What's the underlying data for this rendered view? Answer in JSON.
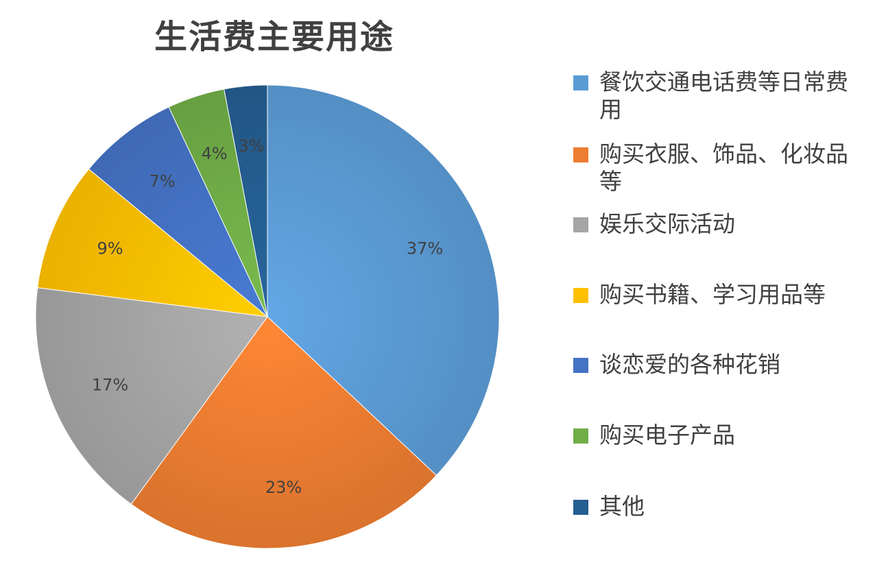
{
  "chart_data": {
    "type": "pie",
    "title": "生活费主要用途",
    "legend_position": "right",
    "slices": [
      {
        "label": "餐饮交通电话费等日常费用",
        "value": 37,
        "display": "37%",
        "color": "#5b9bd5"
      },
      {
        "label": "购买衣服、饰品、化妆品等",
        "value": 23,
        "display": "23%",
        "color": "#ed7d31"
      },
      {
        "label": "娱乐交际活动",
        "value": 17,
        "display": "17%",
        "color": "#a5a5a5"
      },
      {
        "label": "购买书籍、学习用品等",
        "value": 9,
        "display": "9%",
        "color": "#ffc000"
      },
      {
        "label": "谈恋爱的各种花销",
        "value": 7,
        "display": "7%",
        "color": "#4472c4"
      },
      {
        "label": "购买电子产品",
        "value": 4,
        "display": "4%",
        "color": "#70ad47"
      },
      {
        "label": "其他",
        "value": 3,
        "display": "3%",
        "color": "#255e91"
      }
    ]
  }
}
